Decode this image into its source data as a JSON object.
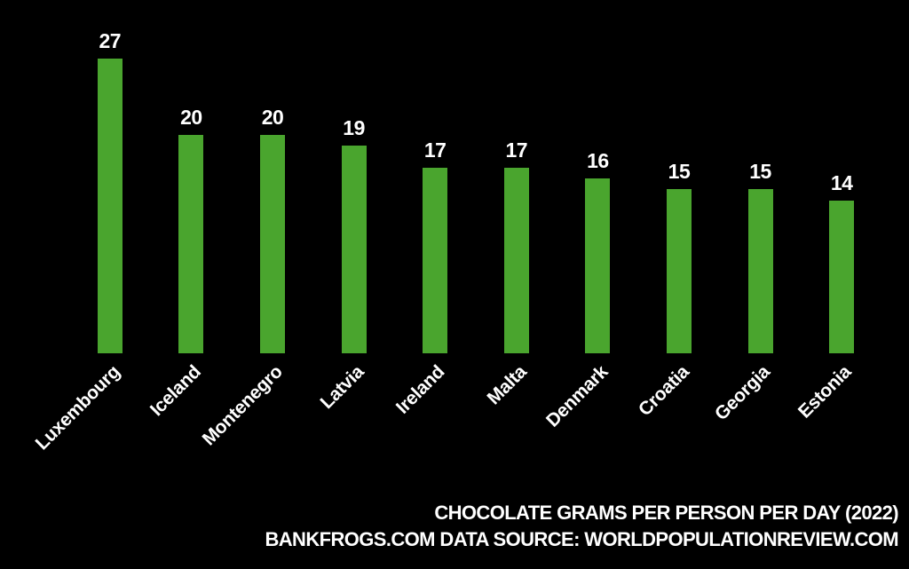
{
  "page": {
    "background_color": "#000000",
    "text_color": "#ffffff"
  },
  "chart_data": {
    "type": "bar",
    "categories": [
      "Luxembourg",
      "Iceland",
      "Montenegro",
      "Latvia",
      "Ireland",
      "Malta",
      "Denmark",
      "Croatia",
      "Georgia",
      "Estonia"
    ],
    "values": [
      27,
      20,
      20,
      19,
      17,
      17,
      16,
      15,
      15,
      14
    ],
    "title": "CHOCOLATE GRAMS PER PERSON PER DAY (2022)",
    "xlabel": "",
    "ylabel": "",
    "ylim": [
      0,
      32
    ],
    "grid": false,
    "legend": "none",
    "bar_color": "#4aa52e",
    "value_labels_shown": true,
    "tick_label_rotation_deg": 45
  },
  "footer": {
    "line1": "CHOCOLATE GRAMS PER PERSON PER DAY (2022)",
    "line2": "BANKFROGS.COM DATA SOURCE: WORLDPOPULATIONREVIEW.COM"
  }
}
